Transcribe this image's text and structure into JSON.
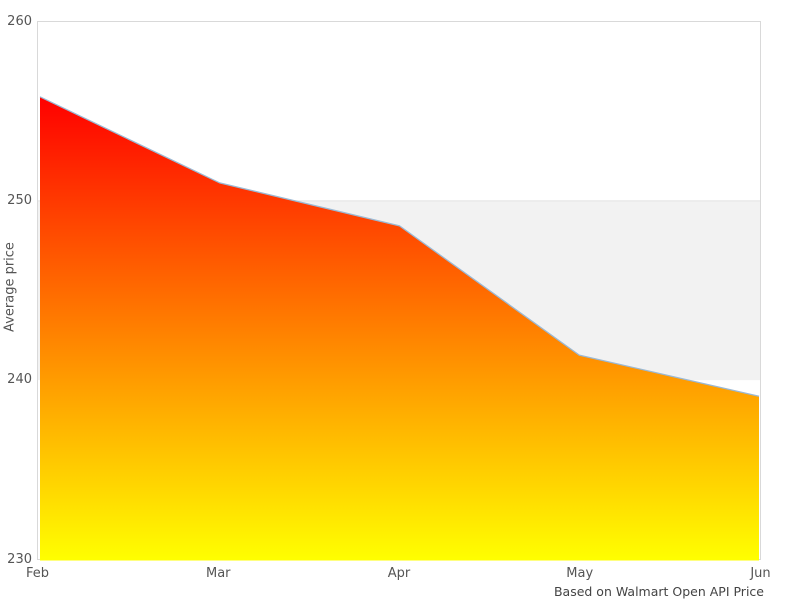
{
  "chart_data": {
    "type": "area",
    "categories": [
      "Feb",
      "Mar",
      "Apr",
      "May",
      "Jun"
    ],
    "values": [
      255.8,
      251.0,
      248.6,
      241.4,
      239.1
    ],
    "title": "",
    "xlabel": "",
    "ylabel": "Average price",
    "ylim": [
      230,
      260
    ],
    "yticks": [
      230,
      240,
      250,
      260
    ],
    "grid": "horizontal-band",
    "grid_band": {
      "from": 240,
      "to": 250,
      "color": "#f2f2f2"
    },
    "gridline_color": "#e2e2e2",
    "frame_color": "#d9d9d9",
    "line_color": "#9bb9d4",
    "area_gradient": {
      "top": "#ff0000",
      "bottom": "#ffff00"
    },
    "legend": "none",
    "caption": "Based on Walmart Open API Price"
  }
}
